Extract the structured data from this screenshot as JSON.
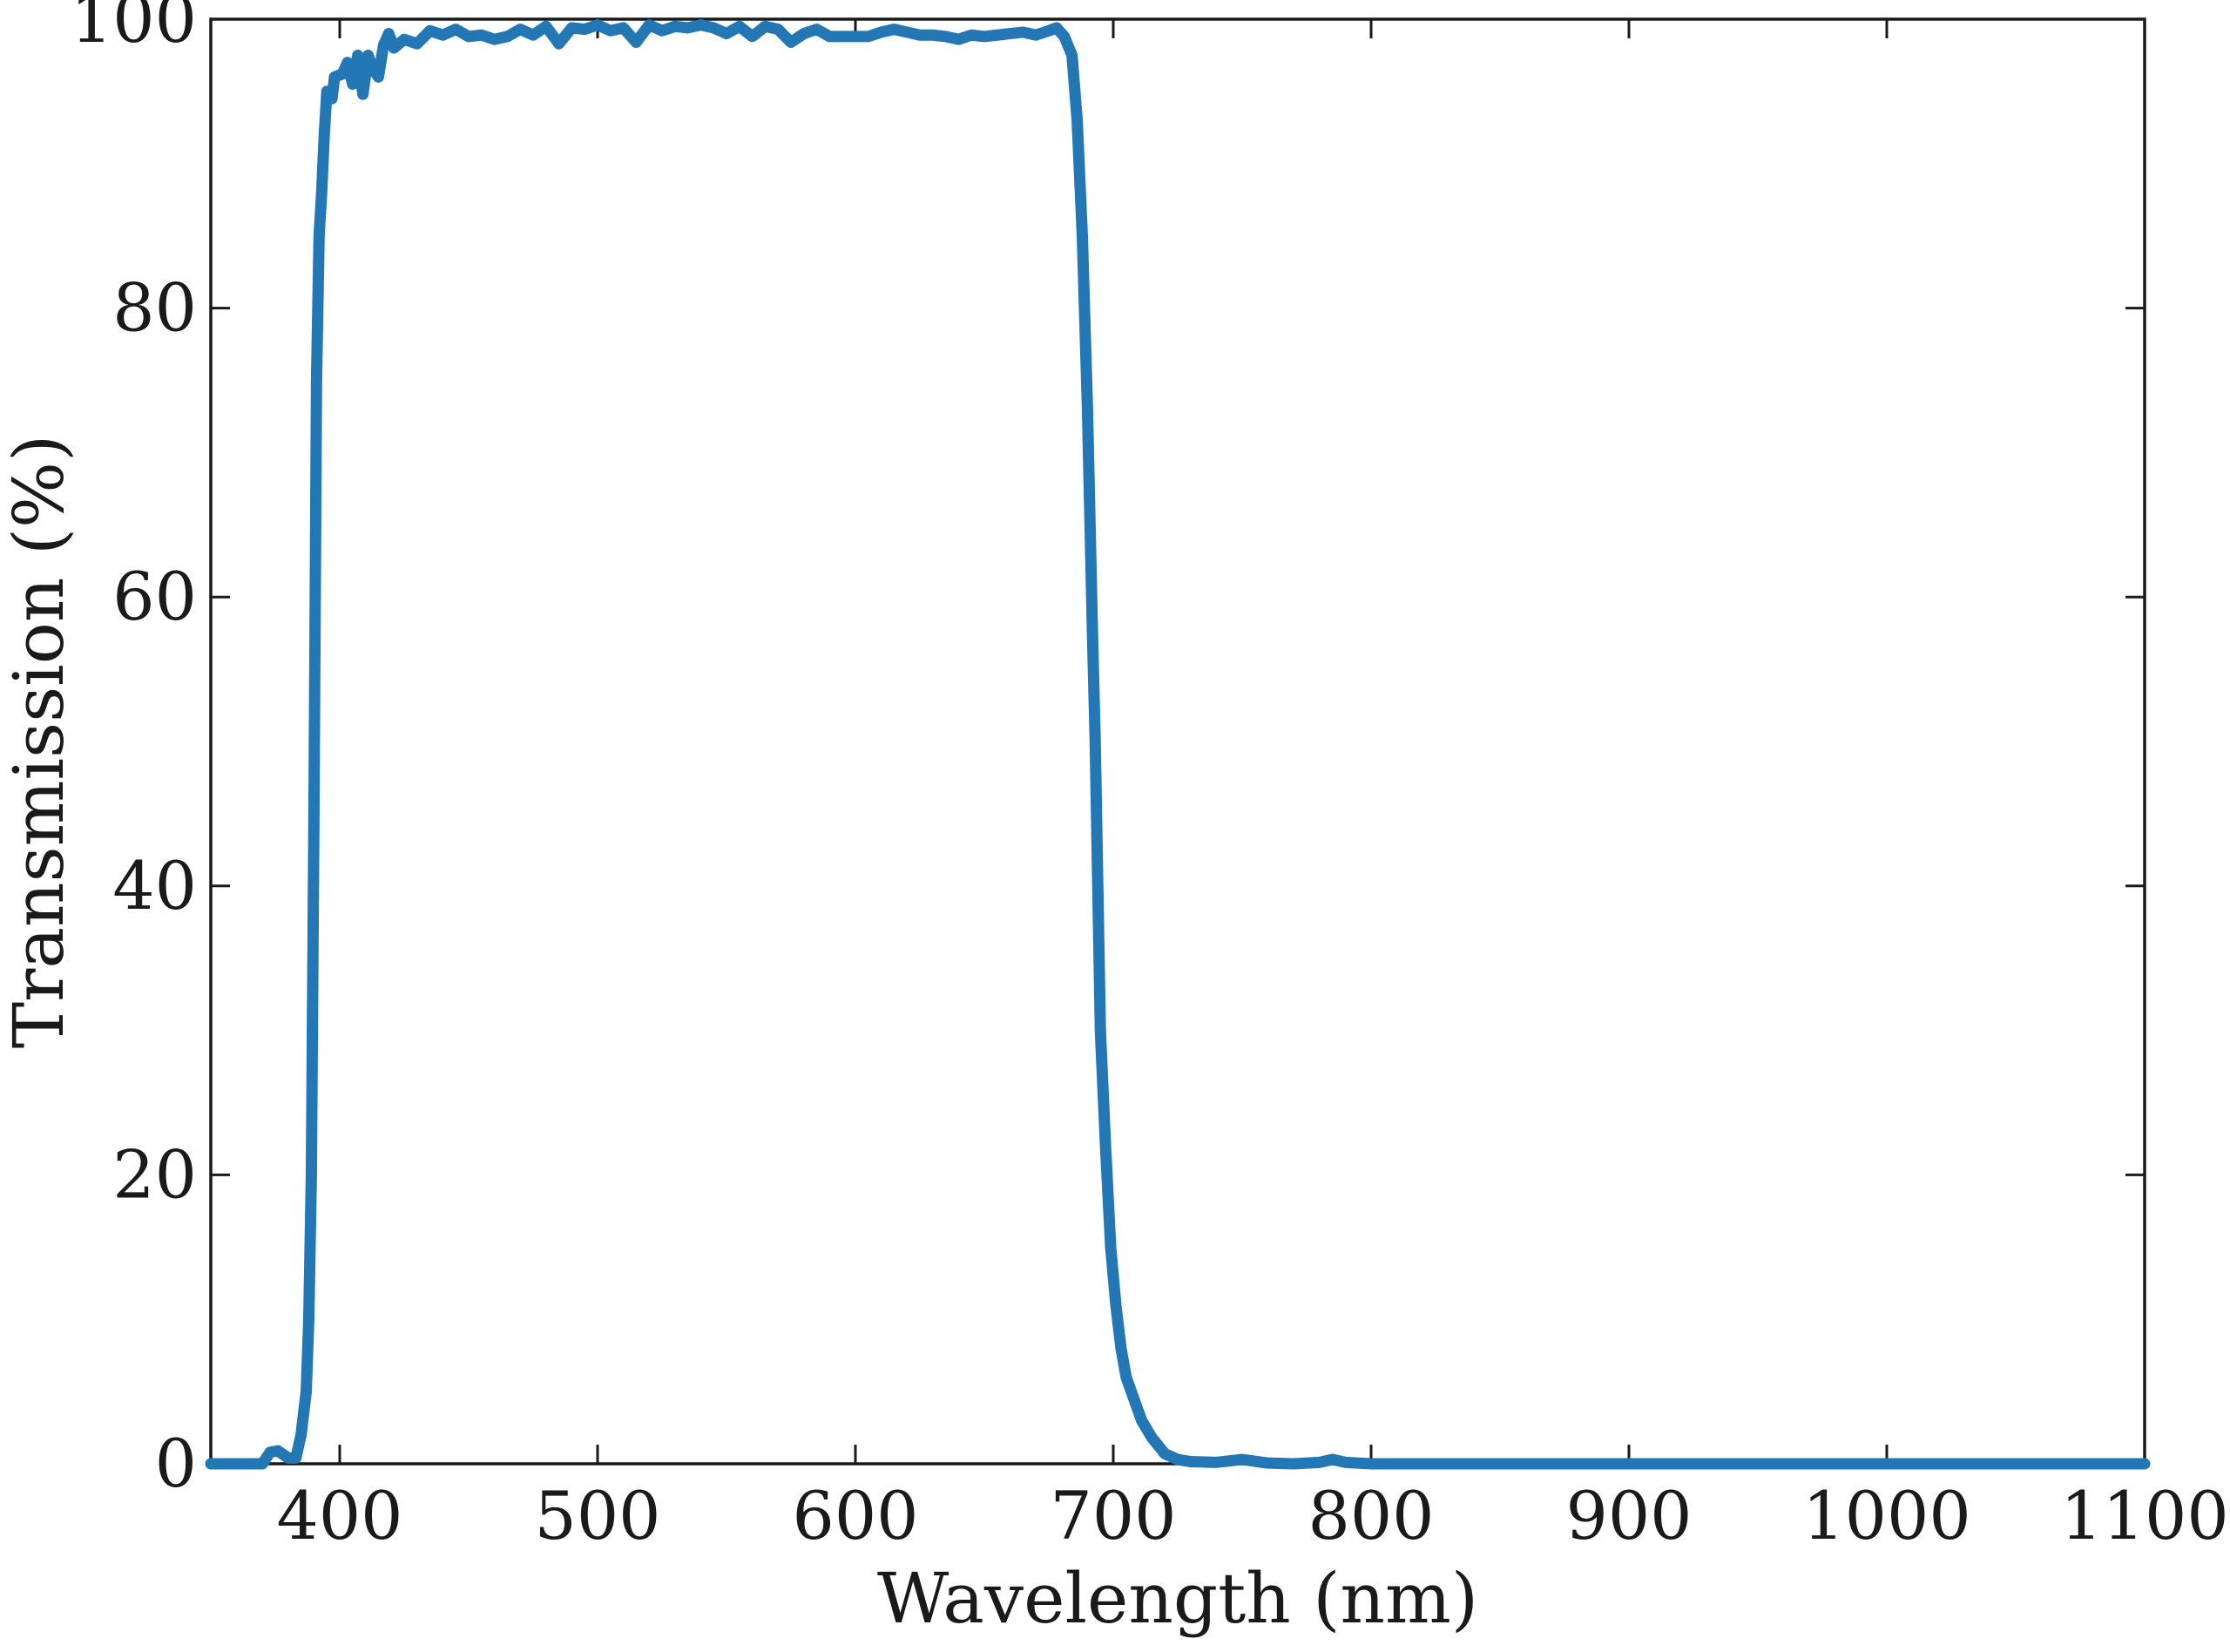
{
  "chart_data": {
    "type": "line",
    "title": "",
    "xlabel": "Wavelength (nm)",
    "ylabel": "Transmission (%)",
    "xlim": [
      350,
      1100
    ],
    "ylim": [
      0,
      100
    ],
    "x_ticks": [
      400,
      500,
      600,
      700,
      800,
      900,
      1000,
      1100
    ],
    "y_ticks": [
      0,
      20,
      40,
      60,
      80,
      100
    ],
    "x_tick_labels": [
      "400",
      "500",
      "600",
      "700",
      "800",
      "900",
      "1000",
      "1100"
    ],
    "y_tick_labels": [
      "0",
      "20",
      "40",
      "60",
      "80",
      "100"
    ],
    "grid": false,
    "series": [
      {
        "color": "#2277b4",
        "points": [
          [
            350,
            0.0
          ],
          [
            360,
            0.0
          ],
          [
            370,
            0.0
          ],
          [
            373,
            0.8
          ],
          [
            376,
            0.9
          ],
          [
            380,
            0.4
          ],
          [
            383,
            0.4
          ],
          [
            385,
            2
          ],
          [
            387,
            5
          ],
          [
            388,
            10
          ],
          [
            389,
            20
          ],
          [
            390,
            45
          ],
          [
            391,
            75
          ],
          [
            392,
            85
          ],
          [
            393,
            88
          ],
          [
            394,
            92
          ],
          [
            395,
            95
          ],
          [
            397,
            94.5
          ],
          [
            398,
            96
          ],
          [
            401,
            96.2
          ],
          [
            403,
            97
          ],
          [
            405,
            95.5
          ],
          [
            407,
            97.5
          ],
          [
            409,
            94.8
          ],
          [
            411,
            97.5
          ],
          [
            413,
            96.5
          ],
          [
            415,
            96
          ],
          [
            417,
            98.2
          ],
          [
            419,
            99
          ],
          [
            421,
            98
          ],
          [
            425,
            98.6
          ],
          [
            430,
            98.3
          ],
          [
            435,
            99.2
          ],
          [
            440,
            98.9
          ],
          [
            445,
            99.3
          ],
          [
            450,
            98.8
          ],
          [
            455,
            98.9
          ],
          [
            460,
            98.6
          ],
          [
            465,
            98.8
          ],
          [
            470,
            99.3
          ],
          [
            475,
            98.9
          ],
          [
            480,
            99.5
          ],
          [
            485,
            98.3
          ],
          [
            490,
            99.4
          ],
          [
            495,
            99.3
          ],
          [
            500,
            99.6
          ],
          [
            505,
            99.2
          ],
          [
            510,
            99.4
          ],
          [
            515,
            98.4
          ],
          [
            520,
            99.6
          ],
          [
            525,
            99.2
          ],
          [
            530,
            99.5
          ],
          [
            535,
            99.4
          ],
          [
            540,
            99.6
          ],
          [
            545,
            99.4
          ],
          [
            550,
            99
          ],
          [
            555,
            99.5
          ],
          [
            560,
            98.8
          ],
          [
            565,
            99.5
          ],
          [
            570,
            99.3
          ],
          [
            575,
            98.4
          ],
          [
            580,
            99
          ],
          [
            585,
            99.3
          ],
          [
            590,
            98.8
          ],
          [
            595,
            98.8
          ],
          [
            600,
            98.8
          ],
          [
            605,
            98.8
          ],
          [
            610,
            99.1
          ],
          [
            615,
            99.3
          ],
          [
            620,
            99.1
          ],
          [
            625,
            98.9
          ],
          [
            630,
            98.9
          ],
          [
            635,
            98.8
          ],
          [
            640,
            98.6
          ],
          [
            645,
            98.9
          ],
          [
            650,
            98.8
          ],
          [
            655,
            98.9
          ],
          [
            660,
            99.0
          ],
          [
            665,
            99.1
          ],
          [
            670,
            98.9
          ],
          [
            675,
            99.2
          ],
          [
            678,
            99.4
          ],
          [
            681,
            98.8
          ],
          [
            684,
            97.5
          ],
          [
            686,
            93
          ],
          [
            688,
            85
          ],
          [
            690,
            73
          ],
          [
            691,
            65
          ],
          [
            692,
            57
          ],
          [
            693,
            50
          ],
          [
            694,
            40
          ],
          [
            695,
            30
          ],
          [
            697,
            22
          ],
          [
            699,
            15
          ],
          [
            701,
            11
          ],
          [
            703,
            8
          ],
          [
            705,
            6
          ],
          [
            708,
            4.5
          ],
          [
            711,
            3
          ],
          [
            715,
            1.8
          ],
          [
            720,
            0.7
          ],
          [
            725,
            0.3
          ],
          [
            730,
            0.15
          ],
          [
            740,
            0.1
          ],
          [
            750,
            0.3
          ],
          [
            760,
            0.05
          ],
          [
            770,
            0.0
          ],
          [
            780,
            0.1
          ],
          [
            785,
            0.3
          ],
          [
            790,
            0.1
          ],
          [
            800,
            0.0
          ],
          [
            850,
            0.0
          ],
          [
            900,
            0.0
          ],
          [
            950,
            0.0
          ],
          [
            1000,
            0.0
          ],
          [
            1050,
            0.0
          ],
          [
            1100,
            0.0
          ]
        ]
      }
    ]
  }
}
